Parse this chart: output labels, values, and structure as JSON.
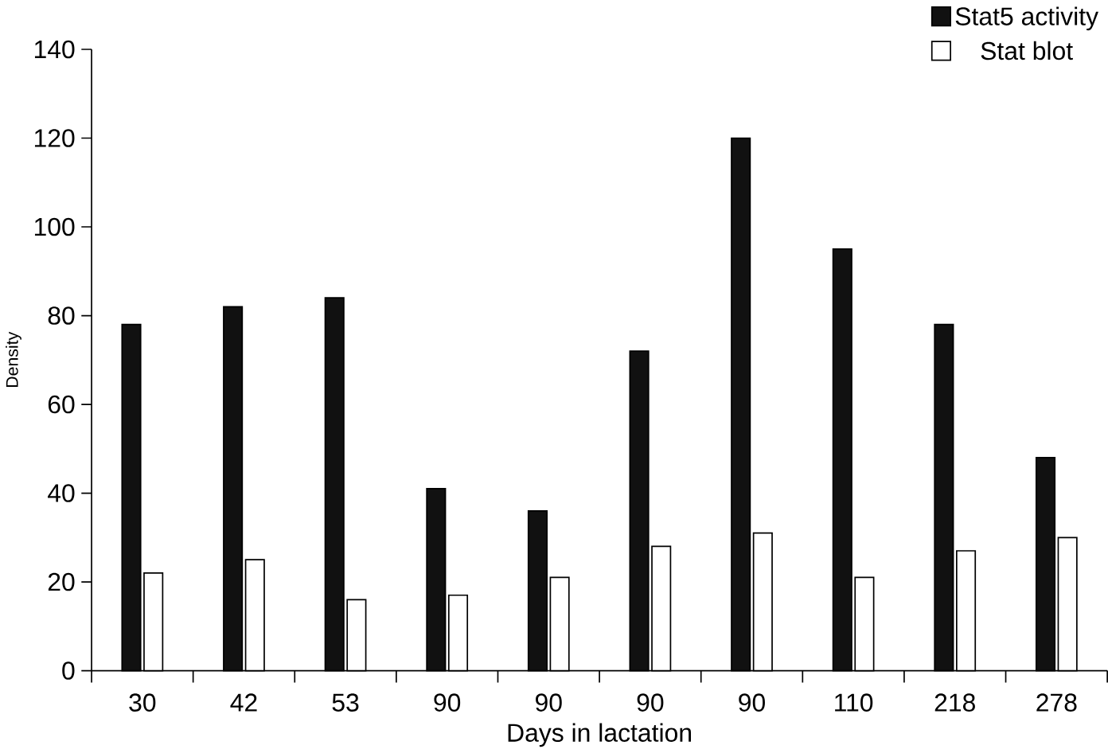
{
  "chart_data": {
    "type": "bar",
    "xlabel": "Days in lactation",
    "ylabel": "Density",
    "categories": [
      "30",
      "42",
      "53",
      "90",
      "90",
      "90",
      "90",
      "110",
      "218",
      "278"
    ],
    "series": [
      {
        "name": "Stat5 activity",
        "color": "#111111",
        "values": [
          78,
          82,
          84,
          41,
          36,
          72,
          120,
          95,
          78,
          48
        ]
      },
      {
        "name": "Stat blot",
        "color": "#ffffff",
        "values": [
          22,
          25,
          16,
          17,
          21,
          28,
          31,
          21,
          27,
          30
        ]
      }
    ],
    "ylim": [
      0,
      140
    ],
    "yticks": [
      0,
      20,
      40,
      60,
      80,
      100,
      120,
      140
    ],
    "grid": false,
    "legend": "top right"
  }
}
